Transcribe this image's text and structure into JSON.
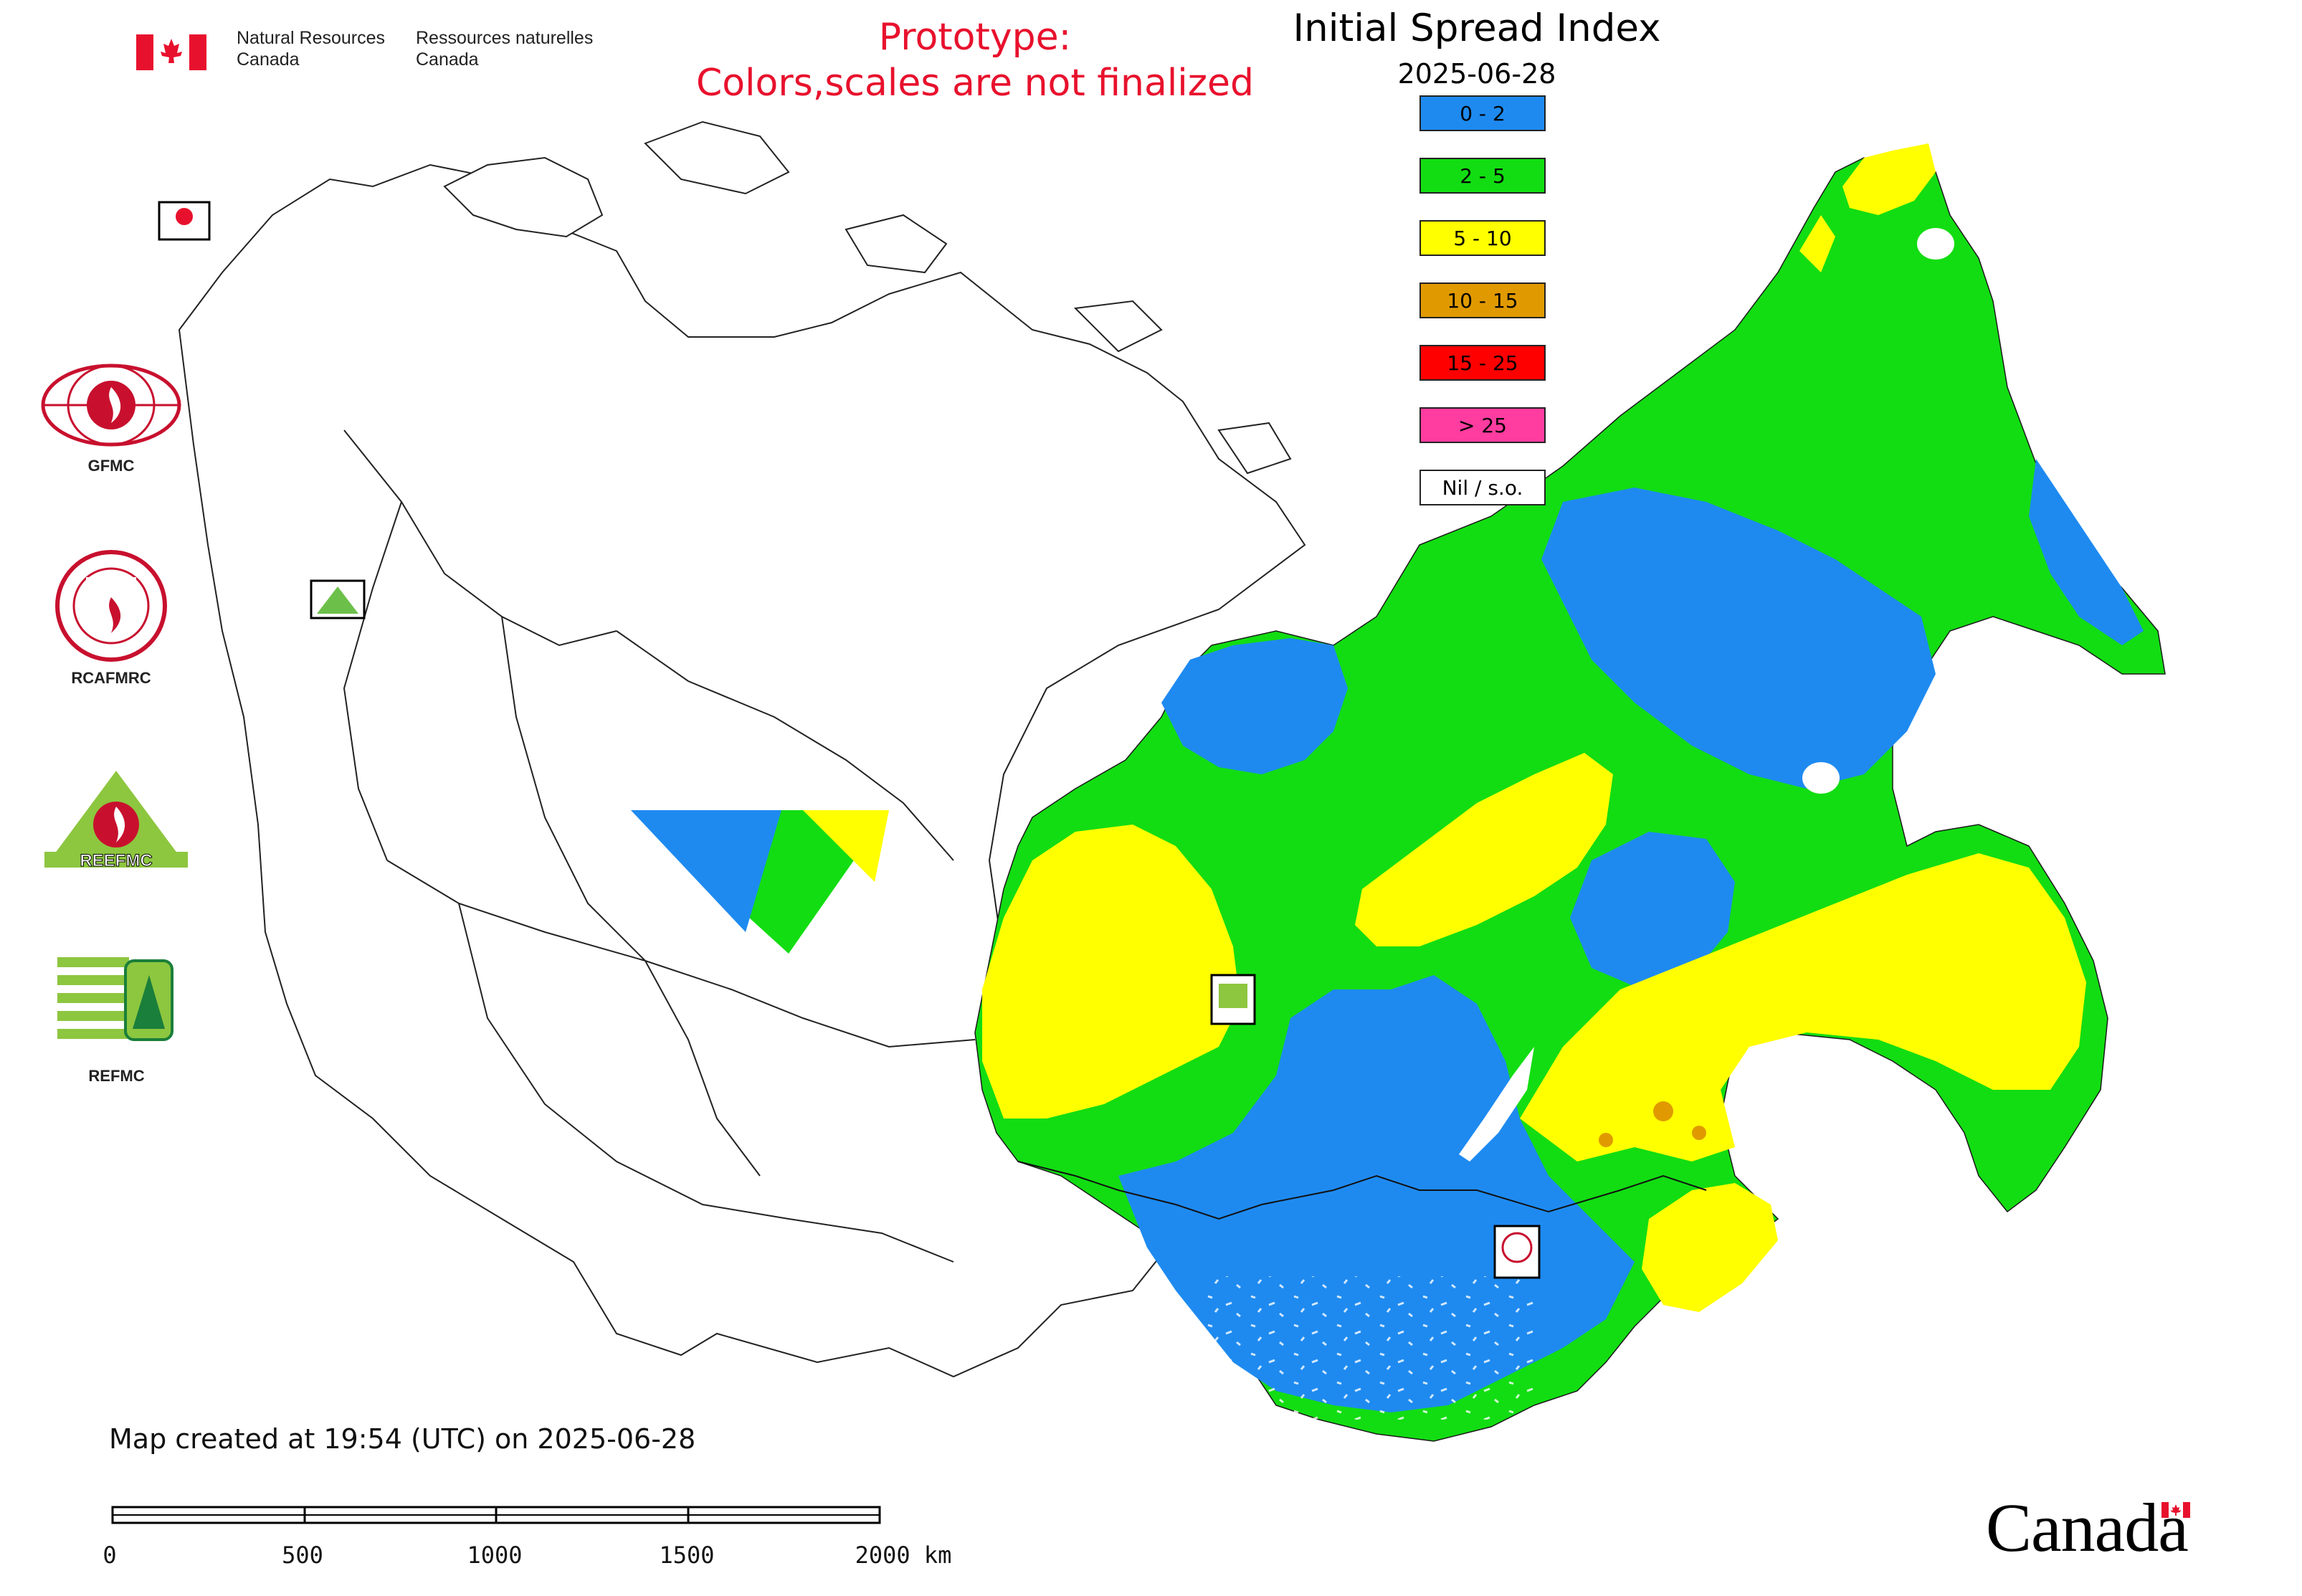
{
  "header": {
    "agency_en": "Natural Resources",
    "agency_en_2": "Canada",
    "agency_fr": "Ressources naturelles",
    "agency_fr_2": "Canada",
    "prototype_line1": "Prototype:",
    "prototype_line2": "Colors,scales are not finalized"
  },
  "map": {
    "title": "Initial Spread Index",
    "date": "2025-06-28",
    "created_note": "Map created at 19:54 (UTC) on 2025-06-28"
  },
  "legend": {
    "items": [
      {
        "label": "0 - 2",
        "color": "#1e8af0"
      },
      {
        "label": "2 - 5",
        "color": "#12dd12"
      },
      {
        "label": "5 - 10",
        "color": "#ffff00"
      },
      {
        "label": "10 - 15",
        "color": "#e09a00"
      },
      {
        "label": "15 - 25",
        "color": "#ff0000"
      },
      {
        "label": "> 25",
        "color": "#ff3ca0"
      },
      {
        "label": "Nil / s.o.",
        "color": "#ffffff"
      }
    ]
  },
  "agencies": [
    {
      "label": "GFMC"
    },
    {
      "label": "RCAFMRC"
    },
    {
      "label": "REEFMC"
    },
    {
      "label": "REFMC"
    }
  ],
  "scale": {
    "ticks": [
      "0",
      "500",
      "1000",
      "1500",
      "2000 km"
    ]
  },
  "colors": {
    "prototype_text": "#e8112d",
    "canada_red": "#e8112d",
    "boundary": "#222222"
  },
  "footer": {
    "wordmark": "Canada"
  }
}
